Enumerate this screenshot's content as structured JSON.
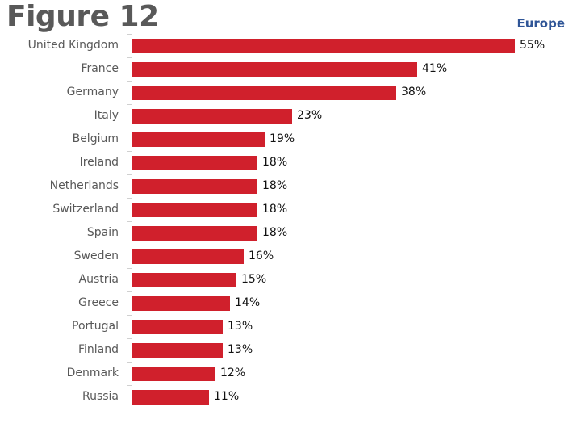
{
  "figure": {
    "title": "Figure 12",
    "region": "Europe"
  },
  "chart_data": {
    "type": "bar",
    "orientation": "horizontal",
    "title": "Figure 12",
    "subtitle": "Europe",
    "categories": [
      "United Kingdom",
      "France",
      "Germany",
      "Italy",
      "Belgium",
      "Ireland",
      "Netherlands",
      "Switzerland",
      "Spain",
      "Sweden",
      "Austria",
      "Greece",
      "Portugal",
      "Finland",
      "Denmark",
      "Russia"
    ],
    "values": [
      55,
      41,
      38,
      23,
      19,
      18,
      18,
      18,
      18,
      16,
      15,
      14,
      13,
      13,
      12,
      11
    ],
    "value_labels": [
      "55%",
      "41%",
      "38%",
      "23%",
      "19%",
      "18%",
      "18%",
      "18%",
      "18%",
      "16%",
      "15%",
      "14%",
      "13%",
      "13%",
      "12%",
      "11%"
    ],
    "xlabel": "",
    "ylabel": "",
    "xlim": [
      0,
      55
    ],
    "unit": "%",
    "grid": false,
    "legend": null,
    "bar_color": "#d0202c"
  }
}
